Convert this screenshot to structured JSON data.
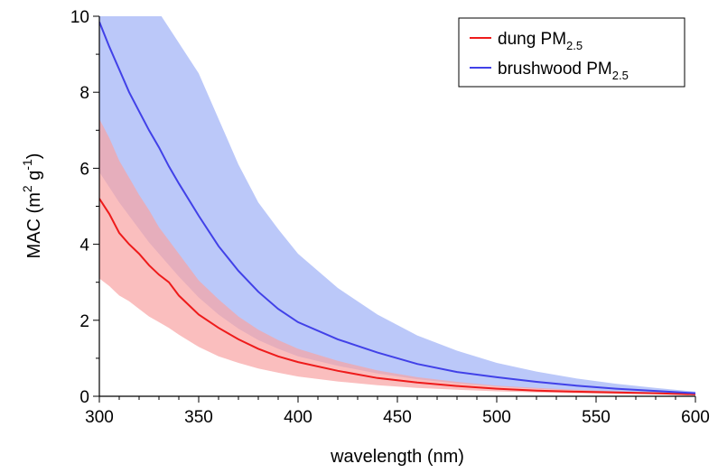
{
  "chart_data": {
    "type": "area",
    "title": "",
    "xlabel": "wavelength (nm)",
    "ylabel": {
      "base": "MAC (m",
      "sup1": "2",
      "mid": " g",
      "sup2": "-1",
      "end": ")"
    },
    "xlim": [
      300,
      600
    ],
    "ylim": [
      0,
      10
    ],
    "x_ticks": [
      300,
      350,
      400,
      450,
      500,
      550,
      600
    ],
    "y_ticks": [
      0,
      2,
      4,
      6,
      8,
      10
    ],
    "grid": false,
    "legend_position": "top-right",
    "x": [
      300,
      305,
      310,
      315,
      320,
      325,
      330,
      335,
      340,
      350,
      360,
      370,
      380,
      390,
      400,
      420,
      440,
      460,
      480,
      500,
      520,
      540,
      560,
      580,
      600
    ],
    "series": [
      {
        "name": "dung PM",
        "name_sub": "2.5",
        "color": "#ee1b1b",
        "band_color": "#f8a3a3",
        "values": [
          5.2,
          4.8,
          4.3,
          4.0,
          3.75,
          3.45,
          3.2,
          3.0,
          2.65,
          2.15,
          1.8,
          1.5,
          1.25,
          1.05,
          0.9,
          0.67,
          0.48,
          0.36,
          0.27,
          0.2,
          0.15,
          0.12,
          0.1,
          0.08,
          0.05
        ],
        "upper": [
          7.3,
          6.8,
          6.2,
          5.75,
          5.3,
          4.9,
          4.45,
          4.1,
          3.75,
          3.05,
          2.55,
          2.1,
          1.75,
          1.48,
          1.25,
          0.93,
          0.68,
          0.5,
          0.38,
          0.28,
          0.22,
          0.17,
          0.13,
          0.1,
          0.07
        ],
        "lower": [
          3.1,
          2.9,
          2.65,
          2.5,
          2.3,
          2.1,
          1.95,
          1.8,
          1.62,
          1.3,
          1.05,
          0.88,
          0.73,
          0.62,
          0.52,
          0.39,
          0.29,
          0.22,
          0.17,
          0.13,
          0.1,
          0.08,
          0.06,
          0.05,
          0.03
        ]
      },
      {
        "name": "brushwood PM",
        "name_sub": "2.5",
        "color": "#4141e8",
        "band_color": "#b4c2f8",
        "values": [
          9.85,
          9.2,
          8.6,
          8.0,
          7.5,
          7.0,
          6.55,
          6.05,
          5.6,
          4.75,
          3.95,
          3.3,
          2.75,
          2.3,
          1.95,
          1.5,
          1.15,
          0.85,
          0.64,
          0.5,
          0.38,
          0.28,
          0.2,
          0.14,
          0.08
        ],
        "upper": [
          12.5,
          12.1,
          11.7,
          11.3,
          10.9,
          10.5,
          10.1,
          9.7,
          9.3,
          8.5,
          7.3,
          6.1,
          5.1,
          4.4,
          3.75,
          2.85,
          2.15,
          1.6,
          1.2,
          0.88,
          0.65,
          0.47,
          0.33,
          0.22,
          0.12
        ],
        "lower": [
          5.9,
          5.5,
          5.1,
          4.75,
          4.4,
          4.05,
          3.75,
          3.45,
          3.15,
          2.6,
          2.15,
          1.78,
          1.48,
          1.25,
          1.05,
          0.8,
          0.6,
          0.45,
          0.34,
          0.26,
          0.2,
          0.15,
          0.11,
          0.08,
          0.05
        ]
      }
    ]
  }
}
